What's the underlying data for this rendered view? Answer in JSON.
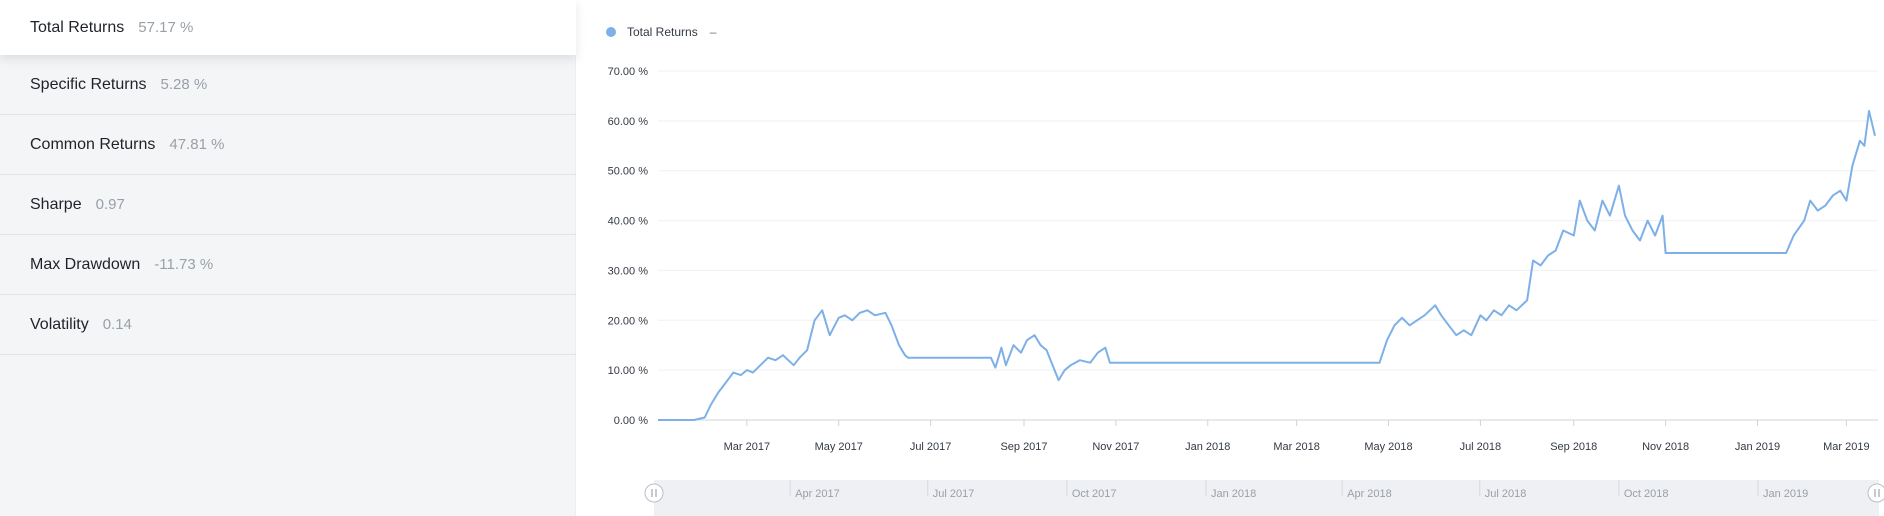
{
  "sidebar": {
    "metrics": [
      {
        "label": "Total Returns",
        "value": "57.17 %"
      },
      {
        "label": "Specific Returns",
        "value": "5.28 %"
      },
      {
        "label": "Common Returns",
        "value": "47.81 %"
      },
      {
        "label": "Sharpe",
        "value": "0.97"
      },
      {
        "label": "Max Drawdown",
        "value": "-11.73 %"
      },
      {
        "label": "Volatility",
        "value": "0.14"
      }
    ]
  },
  "legend": {
    "label": "Total Returns",
    "extra": "–"
  },
  "colors": {
    "series": "#7eb0e8",
    "grid": "#eef0f3",
    "axis": "#cfd3d8",
    "navigator_bg": "#eef0f3"
  },
  "chart_data": {
    "type": "line",
    "title": "",
    "xlabel": "",
    "ylabel": "",
    "ylim": [
      0,
      70
    ],
    "yticks": [
      "0.00 %",
      "10.00 %",
      "20.00 %",
      "30.00 %",
      "40.00 %",
      "50.00 %",
      "60.00 %",
      "70.00 %"
    ],
    "xticks": [
      "Mar 2017",
      "May 2017",
      "Jul 2017",
      "Sep 2017",
      "Nov 2017",
      "Jan 2018",
      "Mar 2018",
      "May 2018",
      "Jul 2018",
      "Sep 2018",
      "Nov 2018",
      "Jan 2019",
      "Mar 2019"
    ],
    "grid": true,
    "legend_position": "top-left",
    "navigator": {
      "ticks": [
        "Apr 2017",
        "Jul 2017",
        "Oct 2017",
        "Jan 2018",
        "Apr 2018",
        "Jul 2018",
        "Oct 2018",
        "Jan 2019"
      ]
    },
    "series": [
      {
        "name": "Total Returns",
        "x": [
          "2017-01-01",
          "2017-01-25",
          "2017-02-01",
          "2017-02-05",
          "2017-02-10",
          "2017-02-15",
          "2017-02-20",
          "2017-02-25",
          "2017-03-01",
          "2017-03-05",
          "2017-03-10",
          "2017-03-15",
          "2017-03-20",
          "2017-03-25",
          "2017-04-01",
          "2017-04-05",
          "2017-04-10",
          "2017-04-15",
          "2017-04-20",
          "2017-04-25",
          "2017-05-01",
          "2017-05-05",
          "2017-05-10",
          "2017-05-15",
          "2017-05-20",
          "2017-05-25",
          "2017-06-01",
          "2017-06-05",
          "2017-06-10",
          "2017-06-14",
          "2017-06-16",
          "2017-08-10",
          "2017-08-13",
          "2017-08-17",
          "2017-08-20",
          "2017-08-25",
          "2017-08-30",
          "2017-09-03",
          "2017-09-08",
          "2017-09-12",
          "2017-09-16",
          "2017-09-20",
          "2017-09-24",
          "2017-09-28",
          "2017-10-02",
          "2017-10-08",
          "2017-10-15",
          "2017-10-20",
          "2017-10-25",
          "2017-10-28",
          "2017-10-30",
          "2018-04-25",
          "2018-04-30",
          "2018-05-05",
          "2018-05-10",
          "2018-05-15",
          "2018-05-20",
          "2018-05-25",
          "2018-06-01",
          "2018-06-05",
          "2018-06-10",
          "2018-06-15",
          "2018-06-20",
          "2018-06-25",
          "2018-07-01",
          "2018-07-05",
          "2018-07-10",
          "2018-07-15",
          "2018-07-20",
          "2018-07-25",
          "2018-08-01",
          "2018-08-05",
          "2018-08-10",
          "2018-08-15",
          "2018-08-20",
          "2018-08-25",
          "2018-09-01",
          "2018-09-05",
          "2018-09-10",
          "2018-09-15",
          "2018-09-20",
          "2018-09-25",
          "2018-10-01",
          "2018-10-05",
          "2018-10-10",
          "2018-10-15",
          "2018-10-20",
          "2018-10-25",
          "2018-10-30",
          "2018-11-01",
          "2019-01-20",
          "2019-01-25",
          "2019-02-01",
          "2019-02-05",
          "2019-02-10",
          "2019-02-15",
          "2019-02-20",
          "2019-02-25",
          "2019-03-01",
          "2019-03-05",
          "2019-03-10",
          "2019-03-13",
          "2019-03-16",
          "2019-03-20"
        ],
        "values": [
          0,
          0,
          0.5,
          3,
          5.5,
          7.5,
          9.5,
          9,
          10,
          9.5,
          11,
          12.5,
          12,
          13,
          11,
          12.5,
          14,
          20,
          22,
          17,
          20.5,
          21,
          20,
          21.5,
          22,
          21,
          21.5,
          19,
          15,
          13,
          12.5,
          12.5,
          10.5,
          14.5,
          11,
          15,
          13.5,
          16,
          17,
          15,
          14,
          11,
          8,
          10,
          11,
          12,
          11.5,
          13.5,
          14.5,
          11.5,
          11.5,
          11.5,
          16,
          19,
          20.5,
          19,
          20,
          21,
          23,
          21,
          19,
          17,
          18,
          17,
          21,
          20,
          22,
          21,
          23,
          22,
          24,
          32,
          31,
          33,
          34,
          38,
          37,
          44,
          40,
          38,
          44,
          41,
          47,
          41,
          38,
          36,
          40,
          37,
          41,
          33.5,
          33.5,
          37,
          40,
          44,
          42,
          43,
          45,
          46,
          44,
          51,
          56,
          55,
          62,
          57
        ]
      }
    ]
  }
}
